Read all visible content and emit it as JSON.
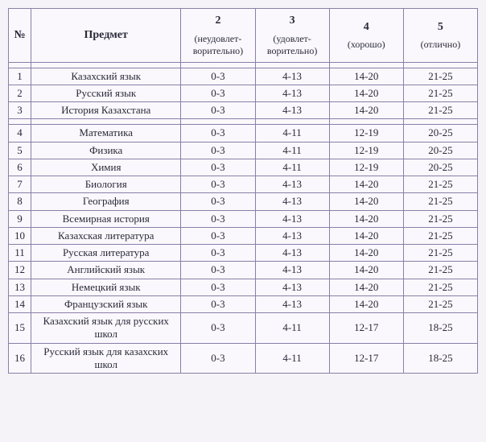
{
  "header": {
    "num": "№",
    "subject": "Предмет",
    "grades": [
      {
        "num": "2",
        "label": "(неудовлет-ворительно)"
      },
      {
        "num": "3",
        "label": "(удовлет-ворительно)"
      },
      {
        "num": "4",
        "label": "(хорошо)"
      },
      {
        "num": "5",
        "label": "(отлично)"
      }
    ]
  },
  "groups": [
    [
      {
        "n": "1",
        "subj": "Казахский язык",
        "g": [
          "0-3",
          "4-13",
          "14-20",
          "21-25"
        ]
      },
      {
        "n": "2",
        "subj": "Русский язык",
        "g": [
          "0-3",
          "4-13",
          "14-20",
          "21-25"
        ]
      },
      {
        "n": "3",
        "subj": "История Казахстана",
        "g": [
          "0-3",
          "4-13",
          "14-20",
          "21-25"
        ]
      }
    ],
    [
      {
        "n": "4",
        "subj": "Математика",
        "g": [
          "0-3",
          "4-11",
          "12-19",
          "20-25"
        ]
      },
      {
        "n": "5",
        "subj": "Физика",
        "g": [
          "0-3",
          "4-11",
          "12-19",
          "20-25"
        ]
      },
      {
        "n": "6",
        "subj": "Химия",
        "g": [
          "0-3",
          "4-11",
          "12-19",
          "20-25"
        ]
      },
      {
        "n": "7",
        "subj": "Биология",
        "g": [
          "0-3",
          "4-13",
          "14-20",
          "21-25"
        ]
      },
      {
        "n": "8",
        "subj": "География",
        "g": [
          "0-3",
          "4-13",
          "14-20",
          "21-25"
        ]
      },
      {
        "n": "9",
        "subj": "Всемирная история",
        "g": [
          "0-3",
          "4-13",
          "14-20",
          "21-25"
        ]
      },
      {
        "n": "10",
        "subj": "Казахская литература",
        "g": [
          "0-3",
          "4-13",
          "14-20",
          "21-25"
        ]
      },
      {
        "n": "11",
        "subj": "Русская литература",
        "g": [
          "0-3",
          "4-13",
          "14-20",
          "21-25"
        ]
      },
      {
        "n": "12",
        "subj": "Английский язык",
        "g": [
          "0-3",
          "4-13",
          "14-20",
          "21-25"
        ]
      },
      {
        "n": "13",
        "subj": "Немецкий язык",
        "g": [
          "0-3",
          "4-13",
          "14-20",
          "21-25"
        ]
      },
      {
        "n": "14",
        "subj": "Французский язык",
        "g": [
          "0-3",
          "4-13",
          "14-20",
          "21-25"
        ]
      },
      {
        "n": "15",
        "subj": "Казахский язык для русских школ",
        "g": [
          "0-3",
          "4-11",
          "12-17",
          "18-25"
        ]
      },
      {
        "n": "16",
        "subj": "Русский язык для казахских школ",
        "g": [
          "0-3",
          "4-11",
          "12-17",
          "18-25"
        ]
      }
    ]
  ],
  "style": {
    "border_color": "#8a7fa8",
    "bg_color": "#faf8fc",
    "text_color": "#2a2a3a"
  }
}
